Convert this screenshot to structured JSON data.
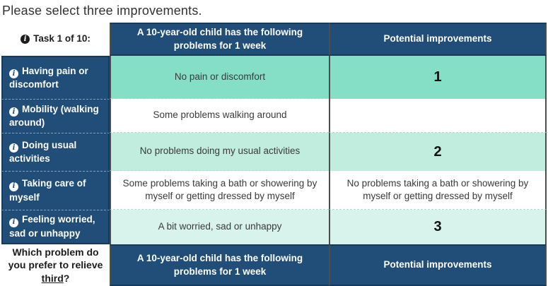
{
  "title": "Please select three improvements.",
  "icons": {
    "info_glyph": "i"
  },
  "colors": {
    "header_blue": "#204e78",
    "rank1_fill": "#85dec6",
    "rank2_fill": "#c0edde",
    "rank3_fill": "#d8f3ec",
    "divider_gray": "#4d4d4d"
  },
  "table": {
    "header": {
      "task_label": "Task 1 of 10:",
      "problems_header": "A 10-year-old child has the following problems for 1 week",
      "improvements_header": "Potential improvements"
    },
    "rows": [
      {
        "dimension": "Having pain or discomfort",
        "problem": "No pain or discomfort",
        "improvement": "1",
        "highlight": "rank1"
      },
      {
        "dimension": "Mobility (walking around)",
        "problem": "Some problems walking around",
        "improvement": "",
        "highlight": "none"
      },
      {
        "dimension": "Doing usual activities",
        "problem": "No problems doing my usual activities",
        "improvement": "2",
        "highlight": "rank2"
      },
      {
        "dimension": "Taking care of myself",
        "problem": "Some problems taking a bath or showering by myself or getting dressed by myself",
        "improvement": "No problems taking a bath or showering by myself or getting dressed by myself",
        "highlight": "none"
      },
      {
        "dimension": "Feeling worried, sad or unhappy",
        "problem": "A bit worried, sad or unhappy",
        "improvement": "3",
        "highlight": "rank3"
      }
    ],
    "footer": {
      "question_prefix": "Which problem do you prefer to relieve ",
      "question_emphasis": "third",
      "question_suffix": "?",
      "problems_header": "A 10-year-old child has the following problems for 1 week",
      "improvements_header": "Potential improvements"
    }
  }
}
